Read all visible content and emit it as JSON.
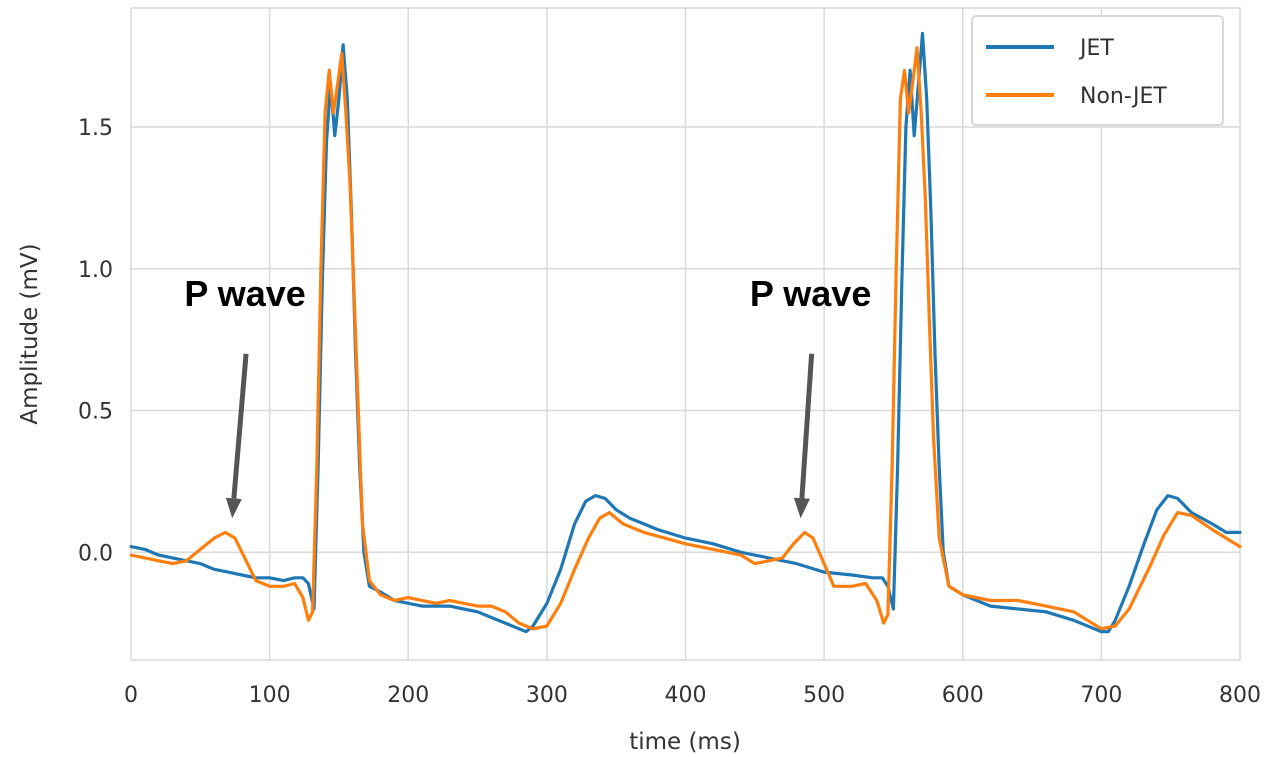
{
  "chart_data": {
    "type": "line",
    "xlabel": "time (ms)",
    "ylabel": "Amplitude (mV)",
    "xlim": [
      0,
      800
    ],
    "ylim": [
      -0.38,
      1.92
    ],
    "x_ticks": [
      0,
      100,
      200,
      300,
      400,
      500,
      600,
      700,
      800
    ],
    "y_ticks": [
      0.0,
      0.5,
      1.0,
      1.5
    ],
    "x_tick_labels": [
      "0",
      "100",
      "200",
      "300",
      "400",
      "500",
      "600",
      "700",
      "800"
    ],
    "y_tick_labels": [
      "0.0",
      "0.5",
      "1.0",
      "1.5"
    ],
    "grid": true,
    "legend_position": "top-right",
    "colors": {
      "JET": "#1f77b4",
      "Non-JET": "#ff7f0e"
    },
    "series": [
      {
        "name": "JET",
        "points": [
          [
            0,
            0.02
          ],
          [
            10,
            0.01
          ],
          [
            20,
            -0.01
          ],
          [
            30,
            -0.02
          ],
          [
            40,
            -0.03
          ],
          [
            50,
            -0.04
          ],
          [
            60,
            -0.06
          ],
          [
            70,
            -0.07
          ],
          [
            80,
            -0.08
          ],
          [
            90,
            -0.09
          ],
          [
            100,
            -0.09
          ],
          [
            110,
            -0.1
          ],
          [
            118,
            -0.09
          ],
          [
            124,
            -0.09
          ],
          [
            128,
            -0.11
          ],
          [
            132,
            -0.2
          ],
          [
            135,
            0.3
          ],
          [
            138,
            0.95
          ],
          [
            141,
            1.45
          ],
          [
            144,
            1.65
          ],
          [
            147,
            1.47
          ],
          [
            150,
            1.6
          ],
          [
            153,
            1.79
          ],
          [
            156,
            1.6
          ],
          [
            159,
            1.2
          ],
          [
            162,
            0.7
          ],
          [
            165,
            0.3
          ],
          [
            168,
            0.0
          ],
          [
            172,
            -0.12
          ],
          [
            180,
            -0.14
          ],
          [
            190,
            -0.17
          ],
          [
            200,
            -0.18
          ],
          [
            210,
            -0.19
          ],
          [
            220,
            -0.19
          ],
          [
            230,
            -0.19
          ],
          [
            240,
            -0.2
          ],
          [
            250,
            -0.21
          ],
          [
            260,
            -0.23
          ],
          [
            270,
            -0.25
          ],
          [
            280,
            -0.27
          ],
          [
            285,
            -0.28
          ],
          [
            290,
            -0.26
          ],
          [
            300,
            -0.18
          ],
          [
            310,
            -0.06
          ],
          [
            320,
            0.1
          ],
          [
            328,
            0.18
          ],
          [
            335,
            0.2
          ],
          [
            342,
            0.19
          ],
          [
            350,
            0.15
          ],
          [
            360,
            0.12
          ],
          [
            370,
            0.1
          ],
          [
            380,
            0.08
          ],
          [
            400,
            0.05
          ],
          [
            420,
            0.03
          ],
          [
            440,
            0.0
          ],
          [
            460,
            -0.02
          ],
          [
            480,
            -0.04
          ],
          [
            500,
            -0.07
          ],
          [
            520,
            -0.08
          ],
          [
            535,
            -0.09
          ],
          [
            542,
            -0.09
          ],
          [
            546,
            -0.12
          ],
          [
            550,
            -0.2
          ],
          [
            553,
            0.3
          ],
          [
            556,
            0.95
          ],
          [
            559,
            1.5
          ],
          [
            562,
            1.7
          ],
          [
            565,
            1.47
          ],
          [
            568,
            1.65
          ],
          [
            571,
            1.83
          ],
          [
            574,
            1.6
          ],
          [
            577,
            1.2
          ],
          [
            580,
            0.7
          ],
          [
            583,
            0.3
          ],
          [
            586,
            0.0
          ],
          [
            590,
            -0.12
          ],
          [
            600,
            -0.15
          ],
          [
            620,
            -0.19
          ],
          [
            640,
            -0.2
          ],
          [
            660,
            -0.21
          ],
          [
            680,
            -0.24
          ],
          [
            700,
            -0.28
          ],
          [
            705,
            -0.28
          ],
          [
            710,
            -0.24
          ],
          [
            720,
            -0.12
          ],
          [
            730,
            0.02
          ],
          [
            740,
            0.15
          ],
          [
            748,
            0.2
          ],
          [
            755,
            0.19
          ],
          [
            765,
            0.14
          ],
          [
            780,
            0.1
          ],
          [
            790,
            0.07
          ],
          [
            800,
            0.07
          ]
        ]
      },
      {
        "name": "Non-JET",
        "points": [
          [
            0,
            -0.01
          ],
          [
            10,
            -0.02
          ],
          [
            20,
            -0.03
          ],
          [
            30,
            -0.04
          ],
          [
            40,
            -0.03
          ],
          [
            50,
            0.01
          ],
          [
            60,
            0.05
          ],
          [
            68,
            0.07
          ],
          [
            75,
            0.05
          ],
          [
            82,
            -0.02
          ],
          [
            90,
            -0.1
          ],
          [
            100,
            -0.12
          ],
          [
            110,
            -0.12
          ],
          [
            118,
            -0.11
          ],
          [
            124,
            -0.16
          ],
          [
            128,
            -0.24
          ],
          [
            131,
            -0.21
          ],
          [
            134,
            0.3
          ],
          [
            137,
            1.0
          ],
          [
            140,
            1.55
          ],
          [
            143,
            1.7
          ],
          [
            146,
            1.55
          ],
          [
            149,
            1.65
          ],
          [
            152,
            1.76
          ],
          [
            155,
            1.55
          ],
          [
            158,
            1.3
          ],
          [
            161,
            0.9
          ],
          [
            164,
            0.5
          ],
          [
            167,
            0.1
          ],
          [
            172,
            -0.1
          ],
          [
            180,
            -0.15
          ],
          [
            190,
            -0.17
          ],
          [
            200,
            -0.16
          ],
          [
            210,
            -0.17
          ],
          [
            220,
            -0.18
          ],
          [
            230,
            -0.17
          ],
          [
            240,
            -0.18
          ],
          [
            250,
            -0.19
          ],
          [
            260,
            -0.19
          ],
          [
            270,
            -0.21
          ],
          [
            280,
            -0.25
          ],
          [
            290,
            -0.27
          ],
          [
            300,
            -0.26
          ],
          [
            310,
            -0.18
          ],
          [
            320,
            -0.06
          ],
          [
            330,
            0.05
          ],
          [
            338,
            0.12
          ],
          [
            345,
            0.14
          ],
          [
            355,
            0.1
          ],
          [
            370,
            0.07
          ],
          [
            385,
            0.05
          ],
          [
            400,
            0.03
          ],
          [
            420,
            0.01
          ],
          [
            440,
            -0.01
          ],
          [
            450,
            -0.04
          ],
          [
            460,
            -0.03
          ],
          [
            470,
            -0.02
          ],
          [
            478,
            0.03
          ],
          [
            486,
            0.07
          ],
          [
            492,
            0.05
          ],
          [
            500,
            -0.04
          ],
          [
            507,
            -0.12
          ],
          [
            520,
            -0.12
          ],
          [
            530,
            -0.11
          ],
          [
            538,
            -0.17
          ],
          [
            543,
            -0.25
          ],
          [
            546,
            -0.22
          ],
          [
            549,
            0.3
          ],
          [
            552,
            1.0
          ],
          [
            555,
            1.6
          ],
          [
            558,
            1.7
          ],
          [
            561,
            1.55
          ],
          [
            564,
            1.66
          ],
          [
            567,
            1.78
          ],
          [
            570,
            1.55
          ],
          [
            573,
            1.25
          ],
          [
            576,
            0.8
          ],
          [
            579,
            0.4
          ],
          [
            583,
            0.05
          ],
          [
            590,
            -0.12
          ],
          [
            600,
            -0.15
          ],
          [
            620,
            -0.17
          ],
          [
            640,
            -0.17
          ],
          [
            660,
            -0.19
          ],
          [
            680,
            -0.21
          ],
          [
            690,
            -0.24
          ],
          [
            700,
            -0.27
          ],
          [
            710,
            -0.26
          ],
          [
            720,
            -0.2
          ],
          [
            735,
            -0.05
          ],
          [
            745,
            0.06
          ],
          [
            755,
            0.14
          ],
          [
            765,
            0.13
          ],
          [
            780,
            0.08
          ],
          [
            790,
            0.05
          ],
          [
            800,
            0.02
          ]
        ]
      }
    ],
    "annotations": [
      {
        "text": "P wave",
        "arrow_from": [
          83,
          0.7
        ],
        "arrow_to": [
          73,
          0.12
        ]
      },
      {
        "text": "P wave",
        "arrow_from": [
          491,
          0.7
        ],
        "arrow_to": [
          483,
          0.12
        ]
      }
    ]
  }
}
